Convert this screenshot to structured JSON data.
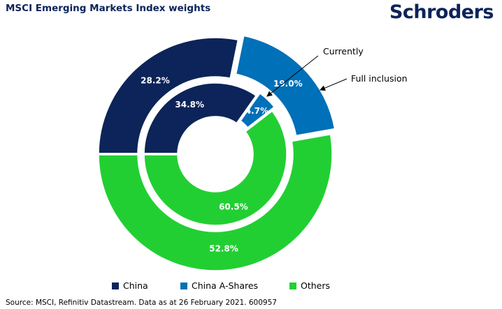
{
  "title": "MSCI Emerging Markets Index weights",
  "logo": "Schroders",
  "source": "Source: MSCI, Refinitiv Datastream. Data as at 26 February 2021. 600957",
  "chart_data": {
    "type": "pie",
    "title": "MSCI Emerging Markets Index weights",
    "categories": [
      "China",
      "China A-Shares",
      "Others"
    ],
    "colors": [
      "#0c2459",
      "#0070b8",
      "#22cf33"
    ],
    "series": [
      {
        "name": "Full inclusion",
        "ring": "outer",
        "values": [
          28.2,
          19.0,
          52.8
        ],
        "labels": [
          "28.2%",
          "19.0%",
          "52.8%"
        ]
      },
      {
        "name": "Currently",
        "ring": "inner",
        "values": [
          34.8,
          4.7,
          60.5
        ],
        "labels": [
          "34.8%",
          "4.7%",
          "60.5%"
        ]
      }
    ],
    "annotations": [
      "Currently",
      "Full inclusion"
    ],
    "legend": "bottom"
  }
}
